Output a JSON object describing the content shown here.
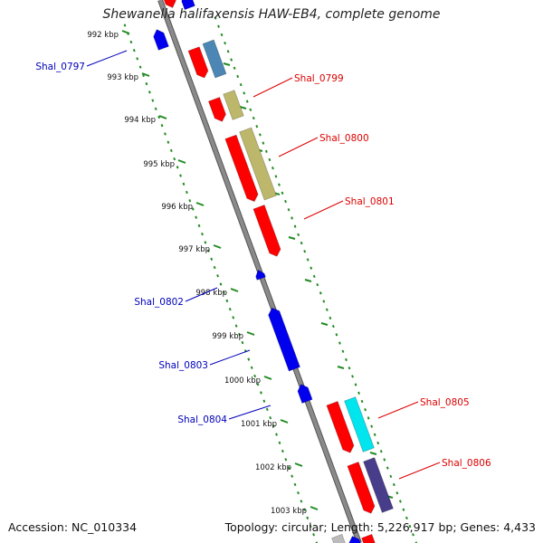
{
  "title": "Shewanella halifaxensis HAW-EB4, complete genome",
  "footer": {
    "accession": "Accession: NC_010334",
    "stats": "Topology: circular; Length: 5,226,917 bp; Genes: 4,433"
  },
  "colors": {
    "backbone": "#8a8a8a",
    "ticks": "#228b22",
    "forward_label": "#dd0000",
    "reverse_label": "#0000bb",
    "cds_forward": "#ff0000",
    "cds_reverse": "#0000ee",
    "teal_feature": "#4b86b4",
    "khaki_feature": "#bdb76b",
    "cyan_feature": "#00e5ee",
    "slate_feature": "#483d8b"
  },
  "scale_labels": [
    {
      "kbp": 992,
      "label": "992 kbp"
    },
    {
      "kbp": 993,
      "label": "993 kbp"
    },
    {
      "kbp": 994,
      "label": "994 kbp"
    },
    {
      "kbp": 995,
      "label": "995 kbp"
    },
    {
      "kbp": 996,
      "label": "996 kbp"
    },
    {
      "kbp": 997,
      "label": "997 kbp"
    },
    {
      "kbp": 998,
      "label": "998 kbp"
    },
    {
      "kbp": 999,
      "label": "999 kbp"
    },
    {
      "kbp": 1000,
      "label": "1000 kbp"
    },
    {
      "kbp": 1001,
      "label": "1001 kbp"
    },
    {
      "kbp": 1002,
      "label": "1002 kbp"
    },
    {
      "kbp": 1003,
      "label": "1003 kbp"
    }
  ],
  "gene_labels": [
    {
      "name": "Shal_0797",
      "strand": "reverse"
    },
    {
      "name": "Shal_0799",
      "strand": "forward"
    },
    {
      "name": "Shal_0800",
      "strand": "forward"
    },
    {
      "name": "Shal_0801",
      "strand": "forward"
    },
    {
      "name": "Shal_0802",
      "strand": "reverse"
    },
    {
      "name": "Shal_0803",
      "strand": "reverse"
    },
    {
      "name": "Shal_0804",
      "strand": "reverse"
    },
    {
      "name": "Shal_0805",
      "strand": "forward"
    },
    {
      "name": "Shal_0806",
      "strand": "forward"
    }
  ]
}
